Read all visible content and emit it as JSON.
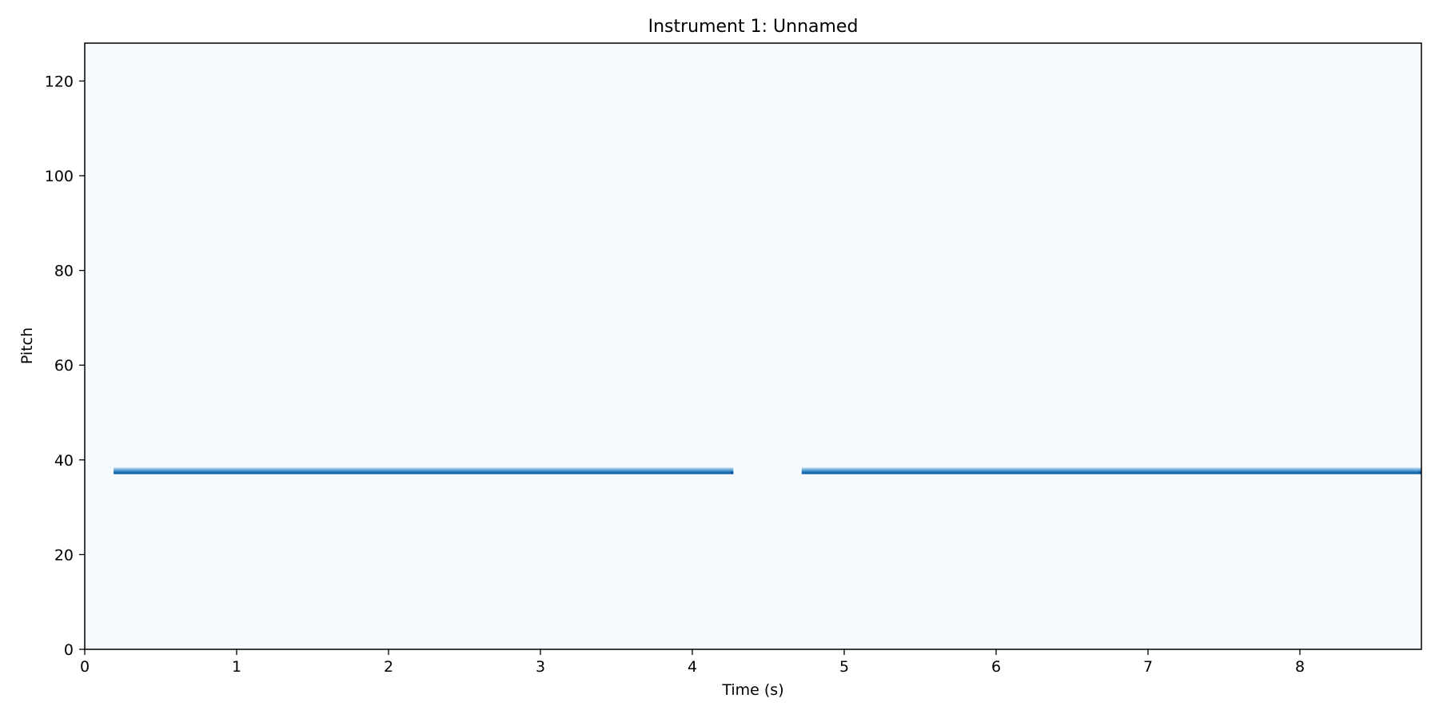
{
  "chart_data": {
    "type": "heatmap",
    "subtype": "piano-roll",
    "title": "Instrument 1: Unnamed",
    "xlabel": "Time (s)",
    "ylabel": "Pitch",
    "xlim": [
      0,
      8.8
    ],
    "ylim": [
      0,
      128
    ],
    "xticks": [
      "0",
      "1",
      "2",
      "3",
      "4",
      "5",
      "6",
      "7",
      "8"
    ],
    "yticks": [
      "0",
      "20",
      "40",
      "60",
      "80",
      "100",
      "120"
    ],
    "colormap": "Blues",
    "grid": false,
    "notes": [
      {
        "pitch": 37,
        "start": 0.19,
        "end": 4.27
      },
      {
        "pitch": 37,
        "start": 4.72,
        "end": 8.8
      }
    ]
  },
  "colors": {
    "plot_background": "#f7fbff",
    "note_dark": "#08519c",
    "note_mid": "#2171b5",
    "note_light": "#9ecae1",
    "axis": "#000000"
  }
}
